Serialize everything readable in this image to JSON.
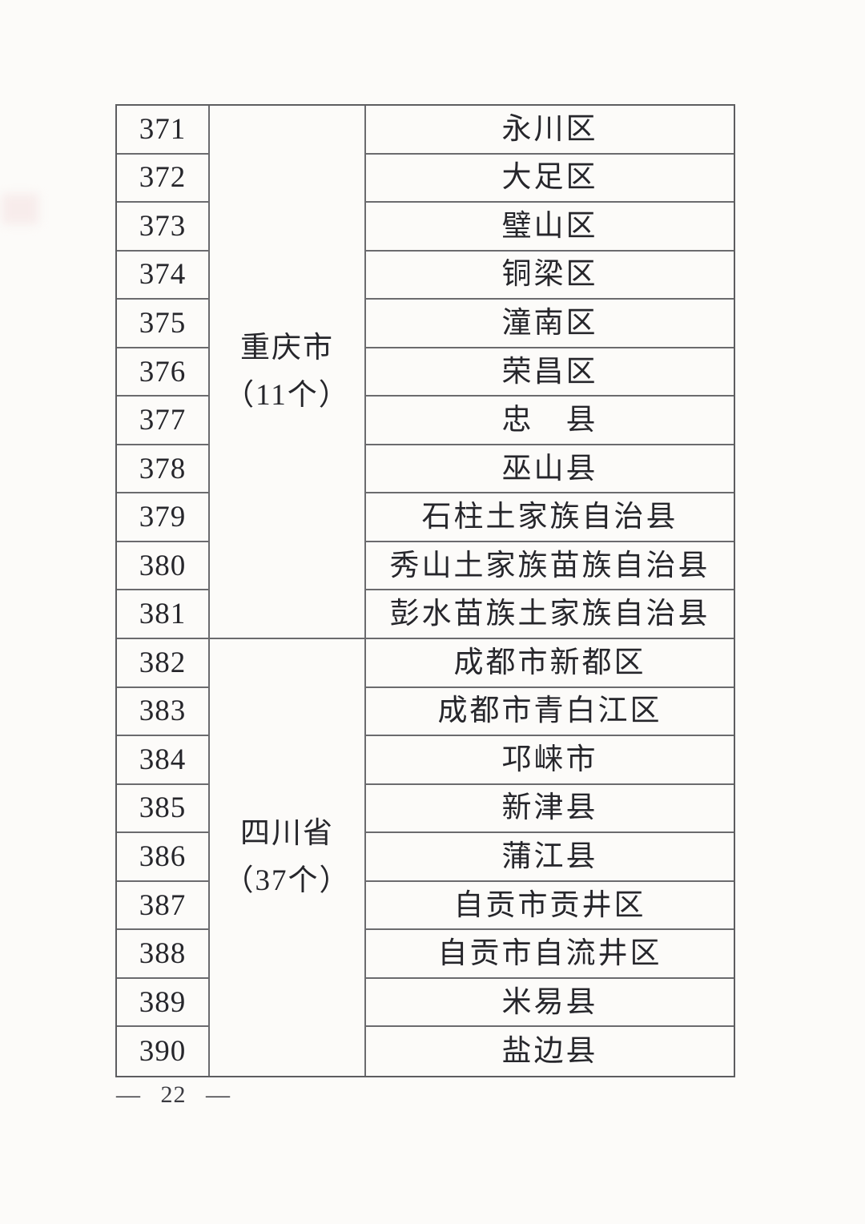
{
  "document": {
    "table": {
      "groups": [
        {
          "province": "重庆市",
          "count_label": "（11个）",
          "rows": [
            {
              "num": "371",
              "name": "永川区"
            },
            {
              "num": "372",
              "name": "大足区"
            },
            {
              "num": "373",
              "name": "璧山区"
            },
            {
              "num": "374",
              "name": "铜梁区"
            },
            {
              "num": "375",
              "name": "潼南区"
            },
            {
              "num": "376",
              "name": "荣昌区"
            },
            {
              "num": "377",
              "name": "忠　县"
            },
            {
              "num": "378",
              "name": "巫山县"
            },
            {
              "num": "379",
              "name": "石柱土家族自治县"
            },
            {
              "num": "380",
              "name": "秀山土家族苗族自治县"
            },
            {
              "num": "381",
              "name": "彭水苗族土家族自治县"
            }
          ]
        },
        {
          "province": "四川省",
          "count_label": "（37个）",
          "rows": [
            {
              "num": "382",
              "name": "成都市新都区"
            },
            {
              "num": "383",
              "name": "成都市青白江区"
            },
            {
              "num": "384",
              "name": "邛崃市"
            },
            {
              "num": "385",
              "name": "新津县"
            },
            {
              "num": "386",
              "name": "蒲江县"
            },
            {
              "num": "387",
              "name": "自贡市贡井区"
            },
            {
              "num": "388",
              "name": "自贡市自流井区"
            },
            {
              "num": "389",
              "name": "米易县"
            },
            {
              "num": "390",
              "name": "盐边县"
            }
          ]
        }
      ]
    },
    "footer": {
      "page_label": "— 22 —"
    }
  },
  "colors": {
    "page_background": "#fcfbf9",
    "text": "#26262b",
    "border": "#6b6b6e"
  }
}
